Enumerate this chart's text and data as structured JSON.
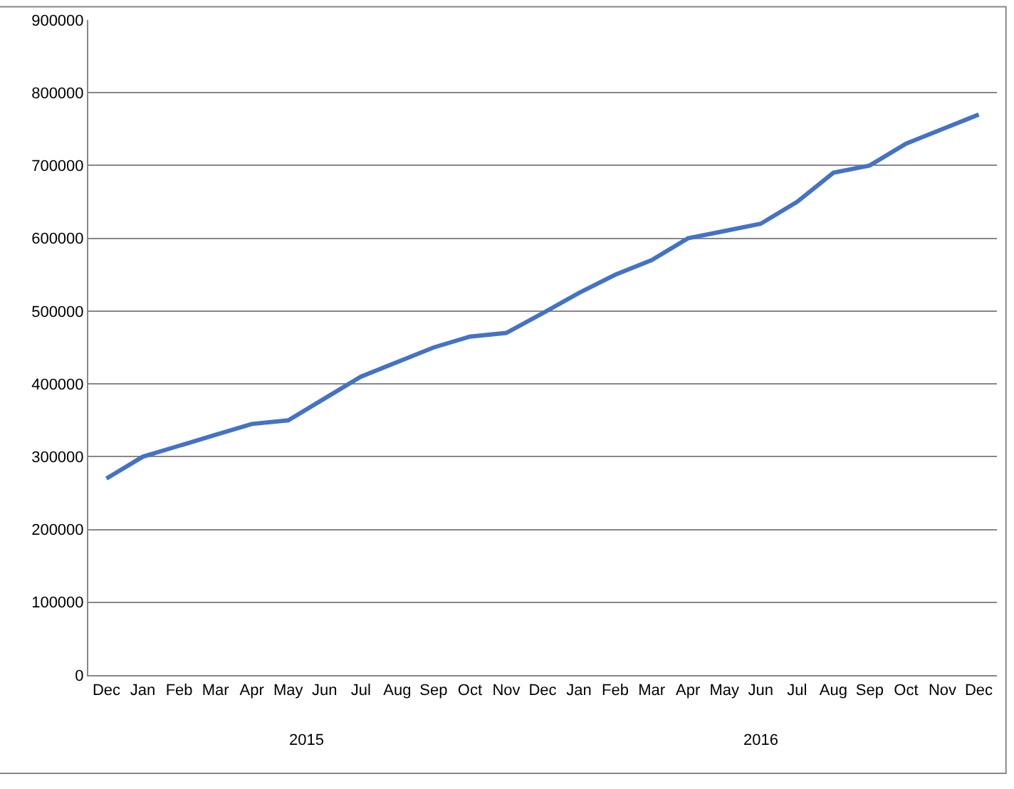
{
  "chart_data": {
    "type": "line",
    "categories": [
      "Dec",
      "Jan",
      "Feb",
      "Mar",
      "Apr",
      "May",
      "Jun",
      "Jul",
      "Aug",
      "Sep",
      "Oct",
      "Nov",
      "Dec",
      "Jan",
      "Feb",
      "Mar",
      "Apr",
      "May",
      "Jun",
      "Jul",
      "Aug",
      "Sep",
      "Oct",
      "Nov",
      "Dec"
    ],
    "series": [
      {
        "color": "#4472c4",
        "values": [
          270000,
          300000,
          315000,
          330000,
          345000,
          350000,
          380000,
          410000,
          430000,
          450000,
          465000,
          470000,
          497000,
          525000,
          550000,
          570000,
          600000,
          610000,
          620000,
          650000,
          690000,
          700000,
          730000,
          750000,
          770000
        ]
      }
    ],
    "ylim": [
      0,
      900000
    ],
    "yticks": [
      0,
      100000,
      200000,
      300000,
      400000,
      500000,
      600000,
      700000,
      800000,
      900000
    ],
    "grid": "y",
    "marker": "none",
    "line_style": "solid",
    "annotations": [
      "2015",
      "2016"
    ]
  }
}
